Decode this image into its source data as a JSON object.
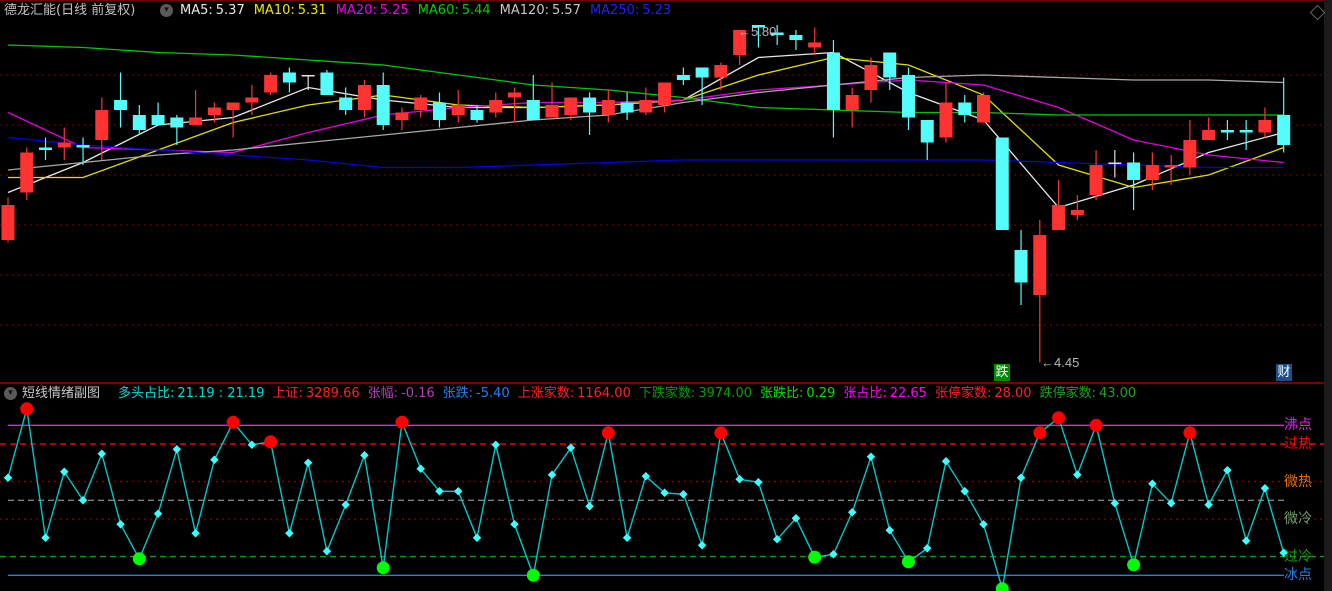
{
  "main_header": {
    "title": "德龙汇能(日线 前复权)",
    "ma_items": [
      {
        "label": "MA5:",
        "value": "5.37",
        "color": "#e8e8e8"
      },
      {
        "label": "MA10:",
        "value": "5.31",
        "color": "#e8e800"
      },
      {
        "label": "MA20:",
        "value": "5.25",
        "color": "#e800e8"
      },
      {
        "label": "MA60:",
        "value": "5.44",
        "color": "#00d000"
      },
      {
        "label": "MA120:",
        "value": "5.57",
        "color": "#c8c8c8"
      },
      {
        "label": "MA250:",
        "value": "5.23",
        "color": "#2020ff"
      }
    ]
  },
  "sub_header": {
    "title": "短线情绪副图",
    "items": [
      {
        "label": "多头占比:",
        "value": "21.19 : 21.19",
        "color": "#00d8d8"
      },
      {
        "label": "上证:",
        "value": "3289.66",
        "color": "#ff2020"
      },
      {
        "label": "张幅:",
        "value": "-0.16",
        "color": "#b040b0"
      },
      {
        "label": "张跌:",
        "value": "-5.40",
        "color": "#2080f0"
      },
      {
        "label": "上涨家数:",
        "value": "1164.00",
        "color": "#ff2020"
      },
      {
        "label": "下跌家数:",
        "value": "3974.00",
        "color": "#00a000"
      },
      {
        "label": "张跌比:",
        "value": "0.29",
        "color": "#00e000"
      },
      {
        "label": "张占比:",
        "value": "22.65",
        "color": "#ff00ff"
      },
      {
        "label": "张停家数:",
        "value": "28.00",
        "color": "#ff2020"
      },
      {
        "label": "跌停家数:",
        "value": "43.00",
        "color": "#20a020"
      }
    ]
  },
  "badges": {
    "fall": "跌",
    "finance": "财"
  },
  "colors": {
    "up": "#ff3232",
    "down": "#54fcfc",
    "flat": "#e0e0e0",
    "grid": "#800000",
    "hot_marker": "#ff0000",
    "cold_marker": "#00ff00",
    "sub_line": "#00c8c8"
  },
  "chart_data": [
    {
      "type": "candlestick",
      "fields": [
        "open",
        "high",
        "low",
        "close"
      ],
      "candles": [
        [
          4.94,
          5.11,
          4.93,
          5.08
        ],
        [
          5.13,
          5.31,
          5.1,
          5.29
        ],
        [
          5.31,
          5.35,
          5.26,
          5.3
        ],
        [
          5.31,
          5.39,
          5.26,
          5.33
        ],
        [
          5.32,
          5.35,
          5.24,
          5.31
        ],
        [
          5.34,
          5.51,
          5.26,
          5.46
        ],
        [
          5.5,
          5.61,
          5.39,
          5.46
        ],
        [
          5.44,
          5.48,
          5.36,
          5.38
        ],
        [
          5.44,
          5.49,
          5.4,
          5.4
        ],
        [
          5.43,
          5.44,
          5.32,
          5.39
        ],
        [
          5.4,
          5.54,
          5.4,
          5.43
        ],
        [
          5.44,
          5.49,
          5.41,
          5.47
        ],
        [
          5.46,
          5.49,
          5.35,
          5.49
        ],
        [
          5.49,
          5.56,
          5.44,
          5.51
        ],
        [
          5.53,
          5.61,
          5.52,
          5.6
        ],
        [
          5.61,
          5.63,
          5.53,
          5.57
        ],
        [
          5.6,
          5.6,
          5.54,
          5.6
        ],
        [
          5.61,
          5.62,
          5.52,
          5.52
        ],
        [
          5.51,
          5.55,
          5.44,
          5.46
        ],
        [
          5.46,
          5.58,
          5.43,
          5.56
        ],
        [
          5.56,
          5.61,
          5.38,
          5.4
        ],
        [
          5.42,
          5.47,
          5.38,
          5.45
        ],
        [
          5.46,
          5.52,
          5.43,
          5.51
        ],
        [
          5.49,
          5.53,
          5.39,
          5.42
        ],
        [
          5.44,
          5.54,
          5.41,
          5.48
        ],
        [
          5.46,
          5.48,
          5.41,
          5.42
        ],
        [
          5.45,
          5.53,
          5.43,
          5.5
        ],
        [
          5.51,
          5.55,
          5.41,
          5.53
        ],
        [
          5.5,
          5.6,
          5.42,
          5.42
        ],
        [
          5.43,
          5.57,
          5.43,
          5.48
        ],
        [
          5.44,
          5.51,
          5.42,
          5.51
        ],
        [
          5.51,
          5.53,
          5.36,
          5.45
        ],
        [
          5.44,
          5.54,
          5.41,
          5.5
        ],
        [
          5.49,
          5.53,
          5.42,
          5.45
        ],
        [
          5.45,
          5.55,
          5.44,
          5.5
        ],
        [
          5.48,
          5.57,
          5.45,
          5.57
        ],
        [
          5.6,
          5.63,
          5.56,
          5.58
        ],
        [
          5.63,
          5.63,
          5.48,
          5.59
        ],
        [
          5.59,
          5.65,
          5.54,
          5.64
        ],
        [
          5.68,
          5.78,
          5.64,
          5.78
        ],
        [
          5.8,
          5.8,
          5.71,
          5.79
        ],
        [
          5.77,
          5.8,
          5.72,
          5.76
        ],
        [
          5.76,
          5.78,
          5.7,
          5.74
        ],
        [
          5.71,
          5.79,
          5.68,
          5.73
        ],
        [
          5.69,
          5.74,
          5.35,
          5.46
        ],
        [
          5.46,
          5.55,
          5.39,
          5.52
        ],
        [
          5.54,
          5.67,
          5.49,
          5.64
        ],
        [
          5.69,
          5.69,
          5.54,
          5.59
        ],
        [
          5.6,
          5.63,
          5.38,
          5.43
        ],
        [
          5.42,
          5.42,
          5.26,
          5.33
        ],
        [
          5.35,
          5.57,
          5.33,
          5.49
        ],
        [
          5.49,
          5.52,
          5.41,
          5.44
        ],
        [
          5.41,
          5.53,
          5.41,
          5.52
        ],
        [
          5.35,
          5.35,
          4.98,
          4.98
        ],
        [
          4.9,
          4.98,
          4.68,
          4.77
        ],
        [
          4.72,
          5.02,
          4.45,
          4.96
        ],
        [
          4.98,
          5.18,
          4.98,
          5.08
        ],
        [
          5.04,
          5.12,
          5.02,
          5.06
        ],
        [
          5.12,
          5.3,
          5.1,
          5.24
        ],
        [
          5.25,
          5.3,
          5.19,
          5.25
        ],
        [
          5.25,
          5.29,
          5.06,
          5.18
        ],
        [
          5.18,
          5.29,
          5.14,
          5.24
        ],
        [
          5.23,
          5.28,
          5.16,
          5.24
        ],
        [
          5.23,
          5.42,
          5.2,
          5.34
        ],
        [
          5.34,
          5.43,
          5.34,
          5.38
        ],
        [
          5.38,
          5.42,
          5.34,
          5.37
        ],
        [
          5.38,
          5.42,
          5.3,
          5.37
        ],
        [
          5.37,
          5.47,
          5.35,
          5.42
        ],
        [
          5.44,
          5.59,
          5.29,
          5.32
        ]
      ],
      "moving_averages": [
        {
          "name": "MA5",
          "color": "#e8e8e8",
          "values": [
            5.13,
            5.25,
            5.4,
            5.43,
            5.55,
            5.5,
            5.47,
            5.47,
            5.48,
            5.5,
            5.67,
            5.69,
            5.53,
            5.42,
            5.07,
            5.16,
            5.29,
            5.37
          ]
        },
        {
          "name": "MA10",
          "color": "#e0e000",
          "values": [
            5.19,
            5.19,
            5.3,
            5.41,
            5.48,
            5.52,
            5.48,
            5.47,
            5.48,
            5.5,
            5.6,
            5.67,
            5.64,
            5.52,
            5.24,
            5.15,
            5.2,
            5.31
          ]
        },
        {
          "name": "MA20",
          "color": "#e000e0",
          "values": [
            5.45,
            5.31,
            5.3,
            5.29,
            5.37,
            5.44,
            5.47,
            5.49,
            5.49,
            5.5,
            5.54,
            5.56,
            5.58,
            5.56,
            5.47,
            5.34,
            5.28,
            5.25
          ]
        },
        {
          "name": "MA60",
          "color": "#00c800",
          "values": [
            5.72,
            5.71,
            5.69,
            5.68,
            5.66,
            5.64,
            5.6,
            5.56,
            5.54,
            5.51,
            5.47,
            5.46,
            5.45,
            5.45,
            5.44,
            5.44,
            5.44,
            5.44
          ]
        },
        {
          "name": "MA120",
          "color": "#a8a8a8",
          "values": [
            5.22,
            5.25,
            5.28,
            5.3,
            5.33,
            5.36,
            5.39,
            5.42,
            5.44,
            5.49,
            5.53,
            5.56,
            5.59,
            5.6,
            5.59,
            5.58,
            5.58,
            5.57
          ]
        },
        {
          "name": "MA250",
          "color": "#0000e8",
          "values": [
            5.35,
            5.32,
            5.3,
            5.28,
            5.26,
            5.23,
            5.23,
            5.24,
            5.25,
            5.26,
            5.26,
            5.26,
            5.26,
            5.26,
            5.25,
            5.24,
            5.23,
            5.23
          ]
        }
      ],
      "grid": true,
      "grid_levels": [
        5.6,
        5.4,
        5.2,
        5.0,
        4.8,
        4.6
      ],
      "annotations": {
        "high_label": "←5.80",
        "low_label": "←4.45"
      }
    },
    {
      "type": "line",
      "title": "短线情绪副图",
      "values": [
        65,
        111,
        25,
        69,
        50,
        81,
        34,
        11,
        41,
        84,
        28,
        77,
        102,
        87,
        89,
        28,
        75,
        16,
        47,
        80,
        5,
        102,
        71,
        56,
        56,
        25,
        87,
        34,
        0,
        67,
        85,
        46,
        95,
        25,
        66,
        55,
        54,
        20,
        95,
        64,
        62,
        24,
        38,
        12,
        14,
        42,
        79,
        30,
        9,
        18,
        76,
        56,
        34,
        -9,
        65,
        95,
        105,
        67,
        100,
        48,
        7,
        61,
        48,
        95,
        47,
        70,
        23,
        58,
        15
      ],
      "levels": [
        {
          "label": "沸点",
          "value": 100,
          "color": "#e020e0",
          "style": "solid"
        },
        {
          "label": "过热",
          "value": 87.5,
          "color": "#ff0000",
          "style": "dashed"
        },
        {
          "label": "微热",
          "value": 62.5,
          "color": "#e07000",
          "style": "dotted"
        },
        {
          "label": "",
          "value": 50,
          "color": "#808080",
          "style": "dashed"
        },
        {
          "label": "微冷",
          "value": 37.5,
          "color": "#70a070",
          "style": "dotted"
        },
        {
          "label": "过冷",
          "value": 12.5,
          "color": "#10a010",
          "style": "dashed"
        },
        {
          "label": "冰点",
          "value": 0,
          "color": "#2080e0",
          "style": "solid"
        }
      ]
    }
  ]
}
